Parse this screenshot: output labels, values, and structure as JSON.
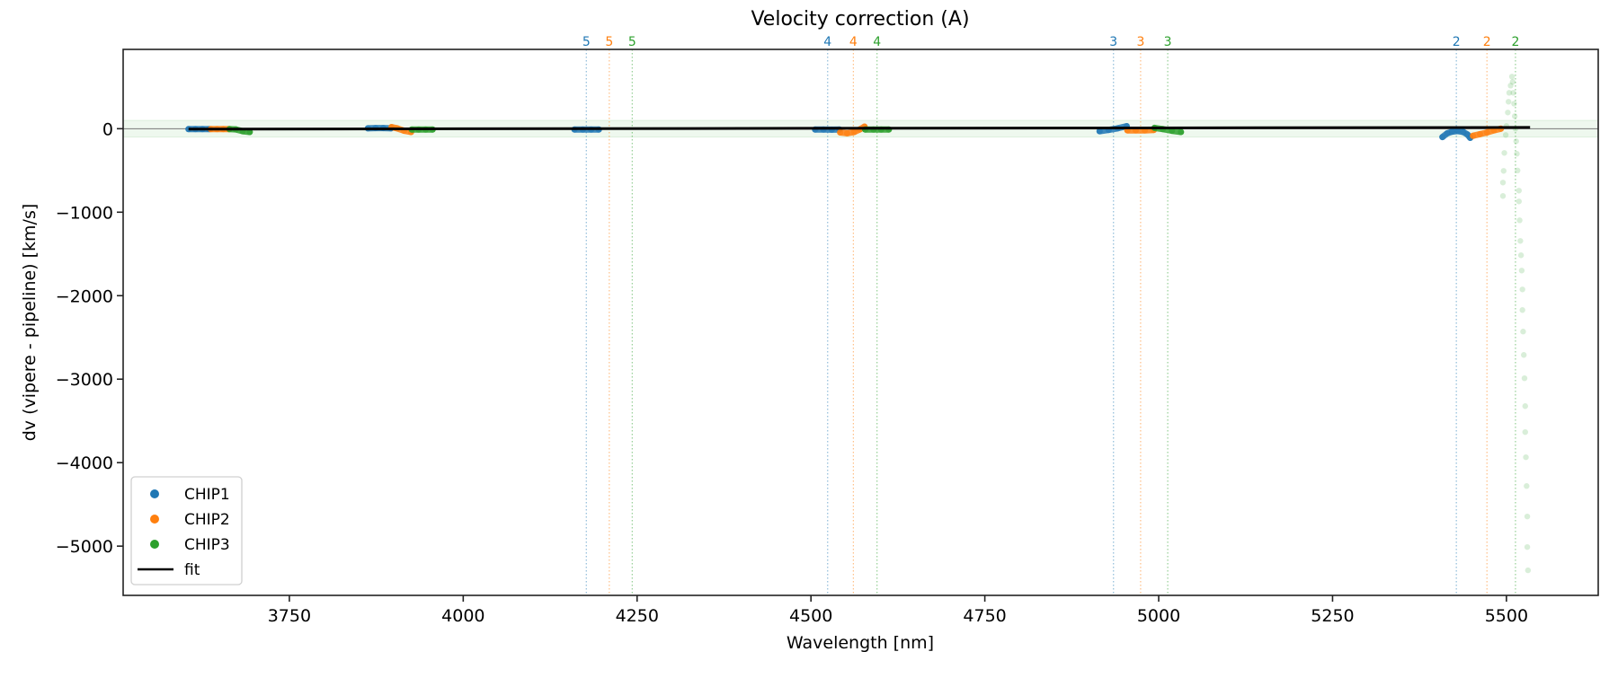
{
  "chart_data": {
    "type": "scatter",
    "title": "Velocity correction (A)",
    "xlabel": "Wavelength [nm]",
    "ylabel": "dv (vipere - pipeline) [km/s]",
    "xlim": [
      3511,
      5632
    ],
    "ylim": [
      -5590,
      950
    ],
    "xticks": [
      3750,
      4000,
      4250,
      4500,
      4750,
      5000,
      5250,
      5500
    ],
    "yticks": [
      0,
      -1000,
      -2000,
      -3000,
      -4000,
      -5000
    ],
    "ytick_labels": [
      "0",
      "−1000",
      "−2000",
      "−3000",
      "−4000",
      "−5000"
    ],
    "grid": false,
    "legend_position": "lower-left",
    "colors": {
      "CHIP1": "#1f77b4",
      "CHIP2": "#ff7f0e",
      "CHIP3": "#2ca02c",
      "fit": "#000000"
    },
    "tolerance_band": [
      -100,
      100
    ],
    "legend": [
      "CHIP1",
      "CHIP2",
      "CHIP3",
      "fit"
    ],
    "order_markers": [
      {
        "order": "5",
        "chip": "CHIP1",
        "x": 4177
      },
      {
        "order": "5",
        "chip": "CHIP2",
        "x": 4210
      },
      {
        "order": "5",
        "chip": "CHIP3",
        "x": 4243
      },
      {
        "order": "4",
        "chip": "CHIP1",
        "x": 4524
      },
      {
        "order": "4",
        "chip": "CHIP2",
        "x": 4561
      },
      {
        "order": "4",
        "chip": "CHIP3",
        "x": 4595
      },
      {
        "order": "3",
        "chip": "CHIP1",
        "x": 4935
      },
      {
        "order": "3",
        "chip": "CHIP2",
        "x": 4974
      },
      {
        "order": "3",
        "chip": "CHIP3",
        "x": 5013
      },
      {
        "order": "2",
        "chip": "CHIP1",
        "x": 5428
      },
      {
        "order": "2",
        "chip": "CHIP2",
        "x": 5472
      },
      {
        "order": "2",
        "chip": "CHIP3",
        "x": 5513
      }
    ],
    "series": [
      {
        "name": "CHIP1",
        "segments": [
          [
            [
              3605,
              -5
            ],
            [
              3615,
              -5
            ],
            [
              3625,
              -5
            ],
            [
              3635,
              -5
            ]
          ],
          [
            [
              3863,
              5
            ],
            [
              3874,
              8
            ],
            [
              3885,
              8
            ],
            [
              3896,
              5
            ]
          ],
          [
            [
              4160,
              -10
            ],
            [
              4172,
              -10
            ],
            [
              4184,
              -10
            ],
            [
              4195,
              -10
            ]
          ],
          [
            [
              4506,
              -10
            ],
            [
              4518,
              -10
            ],
            [
              4530,
              -12
            ],
            [
              4541,
              -10
            ]
          ],
          [
            [
              4915,
              -30
            ],
            [
              4928,
              -15
            ],
            [
              4941,
              5
            ],
            [
              4954,
              30
            ]
          ],
          [
            [
              5408,
              -100
            ],
            [
              5415,
              -55
            ],
            [
              5422,
              -35
            ],
            [
              5430,
              -28
            ],
            [
              5438,
              -40
            ],
            [
              5444,
              -70
            ],
            [
              5448,
              -110
            ]
          ]
        ]
      },
      {
        "name": "CHIP2",
        "segments": [
          [
            [
              3637,
              -5
            ],
            [
              3646,
              -5
            ],
            [
              3655,
              -5
            ],
            [
              3663,
              -5
            ]
          ],
          [
            [
              3897,
              20
            ],
            [
              3905,
              5
            ],
            [
              3915,
              -25
            ],
            [
              3925,
              -40
            ]
          ],
          [
            [
              4542,
              -45
            ],
            [
              4552,
              -55
            ],
            [
              4562,
              -40
            ],
            [
              4570,
              -10
            ],
            [
              4577,
              25
            ]
          ],
          [
            [
              4955,
              -20
            ],
            [
              4967,
              -20
            ],
            [
              4980,
              -20
            ],
            [
              4993,
              -15
            ]
          ],
          [
            [
              5452,
              -85
            ],
            [
              5462,
              -65
            ],
            [
              5472,
              -45
            ],
            [
              5482,
              -20
            ],
            [
              5492,
              0
            ]
          ]
        ]
      },
      {
        "name": "CHIP3",
        "segments": [
          [
            [
              3664,
              -5
            ],
            [
              3673,
              -8
            ],
            [
              3683,
              -30
            ],
            [
              3693,
              -40
            ]
          ],
          [
            [
              3926,
              -10
            ],
            [
              3936,
              -10
            ],
            [
              3946,
              -10
            ],
            [
              3956,
              -10
            ]
          ],
          [
            [
              4578,
              -10
            ],
            [
              4590,
              -10
            ],
            [
              4601,
              -10
            ],
            [
              4612,
              -10
            ]
          ],
          [
            [
              4994,
              10
            ],
            [
              5006,
              -5
            ],
            [
              5019,
              -25
            ],
            [
              5032,
              -40
            ]
          ]
        ],
        "sparse": [
          [
            5495,
            -806
          ],
          [
            5495,
            -645
          ],
          [
            5496,
            -505
          ],
          [
            5497,
            -290
          ],
          [
            5499,
            -75
          ],
          [
            5500,
            32
          ],
          [
            5502,
            194
          ],
          [
            5503,
            323
          ],
          [
            5504,
            430
          ],
          [
            5506,
            516
          ],
          [
            5508,
            624
          ],
          [
            5509,
            560
          ],
          [
            5510,
            430
          ],
          [
            5511,
            300
          ],
          [
            5512,
            150
          ],
          [
            5513,
            0
          ],
          [
            5514,
            -150
          ],
          [
            5515,
            -300
          ],
          [
            5516,
            -500
          ],
          [
            5518,
            -742
          ],
          [
            5518,
            -871
          ],
          [
            5519,
            -1097
          ],
          [
            5520,
            -1344
          ],
          [
            5521,
            -1516
          ],
          [
            5522,
            -1699
          ],
          [
            5523,
            -1925
          ],
          [
            5523,
            -2172
          ],
          [
            5524,
            -2430
          ],
          [
            5525,
            -2710
          ],
          [
            5526,
            -2989
          ],
          [
            5527,
            -3323
          ],
          [
            5527,
            -3634
          ],
          [
            5528,
            -3935
          ],
          [
            5529,
            -4280
          ],
          [
            5530,
            -4645
          ],
          [
            5530,
            -5011
          ],
          [
            5531,
            -5290
          ]
        ]
      },
      {
        "name": "fit",
        "x": [
          3605,
          5534
        ],
        "y": [
          -5,
          15
        ]
      }
    ]
  }
}
